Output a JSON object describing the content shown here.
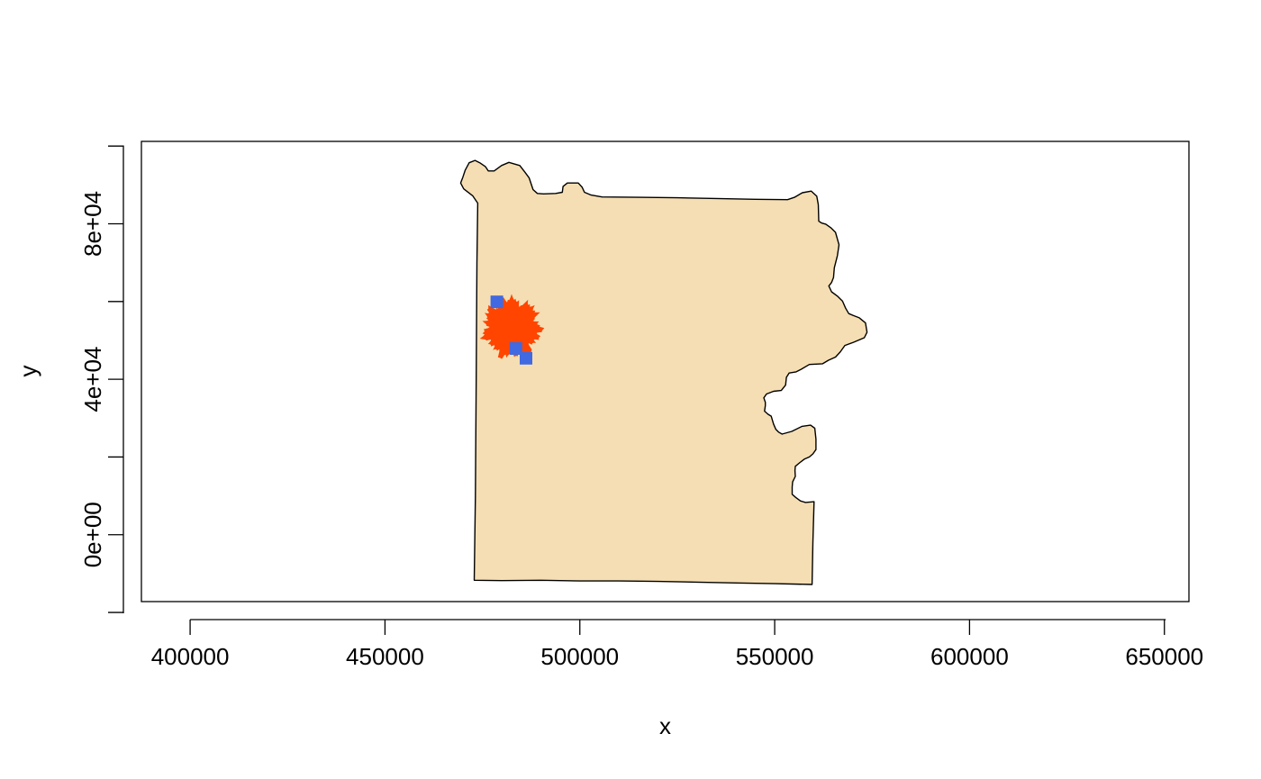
{
  "chart_data": {
    "type": "map",
    "xlabel": "x",
    "ylabel": "y",
    "xlim": [
      387500,
      656300
    ],
    "ylim": [
      -17200,
      101200
    ],
    "x_ticks": [
      400000,
      450000,
      500000,
      550000,
      600000,
      650000
    ],
    "x_tick_labels": [
      "400000",
      "450000",
      "500000",
      "550000",
      "600000",
      "650000"
    ],
    "y_ticks": [
      -20000,
      0,
      20000,
      40000,
      60000,
      80000,
      100000
    ],
    "y_tick_labels": [
      "",
      "0e+00",
      "",
      "4e+04",
      "",
      "8e+04",
      ""
    ],
    "layers": [
      {
        "name": "boundary-polygon",
        "fill": "#f5deb3",
        "stroke": "#000000",
        "coords": [
          [
            472900,
            -11700
          ],
          [
            473200,
            10000
          ],
          [
            473400,
            40000
          ],
          [
            473600,
            70000
          ],
          [
            473800,
            85300
          ],
          [
            472500,
            87200
          ],
          [
            470200,
            89000
          ],
          [
            469400,
            90500
          ],
          [
            470000,
            92000
          ],
          [
            470600,
            93800
          ],
          [
            471600,
            95700
          ],
          [
            473100,
            96300
          ],
          [
            474300,
            95700
          ],
          [
            475800,
            94700
          ],
          [
            476500,
            93600
          ],
          [
            478000,
            93600
          ],
          [
            479900,
            95000
          ],
          [
            481800,
            95800
          ],
          [
            484600,
            95000
          ],
          [
            485900,
            93300
          ],
          [
            487000,
            91800
          ],
          [
            488000,
            88800
          ],
          [
            489100,
            87800
          ],
          [
            490700,
            87700
          ],
          [
            493800,
            87800
          ],
          [
            495500,
            88100
          ],
          [
            495700,
            89600
          ],
          [
            496800,
            90500
          ],
          [
            499600,
            90500
          ],
          [
            500600,
            89400
          ],
          [
            501200,
            88100
          ],
          [
            502900,
            87400
          ],
          [
            505700,
            86900
          ],
          [
            515000,
            86800
          ],
          [
            525000,
            86700
          ],
          [
            535000,
            86500
          ],
          [
            545000,
            86300
          ],
          [
            553300,
            86200
          ],
          [
            555100,
            86800
          ],
          [
            557100,
            88000
          ],
          [
            559400,
            88400
          ],
          [
            560800,
            87100
          ],
          [
            561200,
            84900
          ],
          [
            561300,
            80700
          ],
          [
            562000,
            80200
          ],
          [
            563100,
            79900
          ],
          [
            564500,
            78900
          ],
          [
            565600,
            77800
          ],
          [
            566500,
            74600
          ],
          [
            566100,
            71800
          ],
          [
            565300,
            68700
          ],
          [
            565100,
            66200
          ],
          [
            564600,
            64900
          ],
          [
            563900,
            64000
          ],
          [
            564600,
            62500
          ],
          [
            566100,
            61400
          ],
          [
            567400,
            60100
          ],
          [
            568200,
            58300
          ],
          [
            569000,
            56900
          ],
          [
            570200,
            56400
          ],
          [
            571700,
            55800
          ],
          [
            573300,
            54500
          ],
          [
            573700,
            52100
          ],
          [
            573000,
            50700
          ],
          [
            570200,
            49500
          ],
          [
            568000,
            48700
          ],
          [
            566800,
            47000
          ],
          [
            565600,
            45700
          ],
          [
            563800,
            44900
          ],
          [
            562300,
            44000
          ],
          [
            558900,
            43800
          ],
          [
            556700,
            42500
          ],
          [
            555500,
            41900
          ],
          [
            553700,
            41600
          ],
          [
            553000,
            40500
          ],
          [
            552800,
            38500
          ],
          [
            551700,
            37100
          ],
          [
            549700,
            36900
          ],
          [
            547900,
            36200
          ],
          [
            547200,
            35200
          ],
          [
            547600,
            34100
          ],
          [
            547600,
            33200
          ],
          [
            547400,
            31800
          ],
          [
            548300,
            31000
          ],
          [
            549100,
            30500
          ],
          [
            549700,
            28500
          ],
          [
            550300,
            27100
          ],
          [
            551000,
            26400
          ],
          [
            551900,
            25900
          ],
          [
            554400,
            26600
          ],
          [
            557000,
            27900
          ],
          [
            559200,
            28200
          ],
          [
            560300,
            27400
          ],
          [
            560600,
            24600
          ],
          [
            560600,
            21900
          ],
          [
            559800,
            20800
          ],
          [
            558900,
            20000
          ],
          [
            557700,
            19500
          ],
          [
            556500,
            18600
          ],
          [
            555300,
            17600
          ],
          [
            555200,
            16500
          ],
          [
            555300,
            15000
          ],
          [
            554600,
            13600
          ],
          [
            554500,
            12300
          ],
          [
            554500,
            10400
          ],
          [
            555400,
            9600
          ],
          [
            556600,
            8700
          ],
          [
            557900,
            8300
          ],
          [
            560100,
            8500
          ],
          [
            559800,
            -2000
          ],
          [
            559600,
            -12800
          ],
          [
            550000,
            -12600
          ],
          [
            540000,
            -12400
          ],
          [
            530000,
            -12200
          ],
          [
            520000,
            -12000
          ],
          [
            510000,
            -11900
          ],
          [
            500000,
            -11900
          ],
          [
            490000,
            -11700
          ],
          [
            480000,
            -11800
          ],
          [
            472900,
            -11700
          ]
        ]
      },
      {
        "name": "fire-perimeter",
        "fill": "#ff4500",
        "center": [
          482500,
          53200
        ],
        "bounds_x": [
          475500,
          491300
        ],
        "bounds_y": [
          46400,
          62700
        ]
      },
      {
        "name": "sample-points",
        "fill": "#4169e1",
        "shape": "square",
        "points": [
          [
            478700,
            59900
          ],
          [
            483600,
            47900
          ],
          [
            486200,
            45400
          ]
        ]
      }
    ],
    "grid": false,
    "legend": "none"
  }
}
